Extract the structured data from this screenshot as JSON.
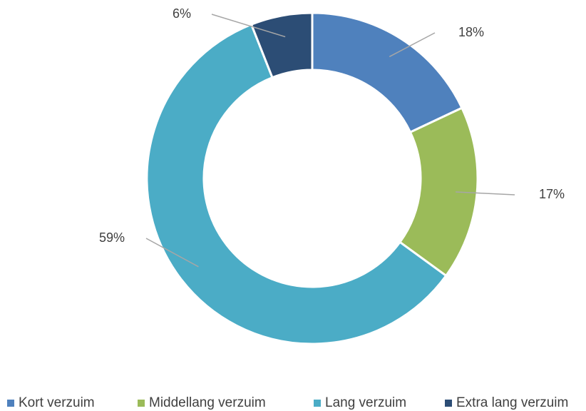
{
  "chart_data": {
    "type": "donut",
    "categories": [
      "Kort verzuim",
      "Middellang verzuim",
      "Lang verzuim",
      "Extra lang verzuim"
    ],
    "values": [
      18,
      17,
      59,
      6
    ],
    "value_labels": [
      "18%",
      "17%",
      "59%",
      "6%"
    ],
    "colors": [
      "#4f81bd",
      "#9bbb59",
      "#4bacc6",
      "#2c4d75"
    ],
    "legend": "bottom"
  }
}
